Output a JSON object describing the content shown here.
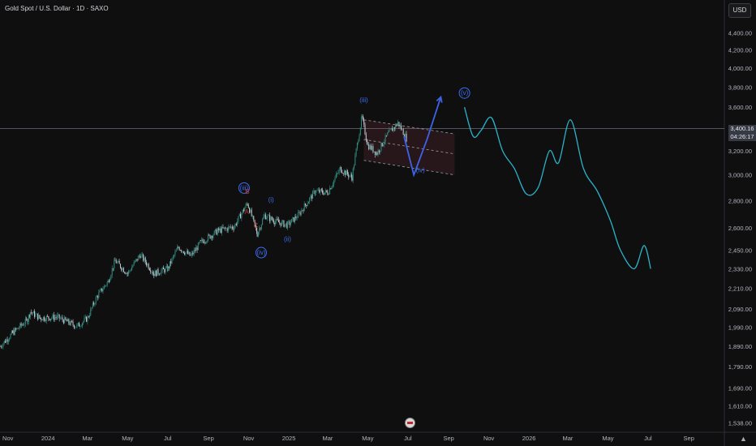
{
  "header": {
    "title": "Gold Spot / U.S. Dollar · 1D · SAXO"
  },
  "currency_button": {
    "label": "USD"
  },
  "last_price": {
    "value": "3,400.16",
    "countdown": "04:26:17"
  },
  "chart_data": {
    "type": "line",
    "title": "Gold Spot / U.S. Dollar · 1D · SAXO",
    "scale": "log",
    "ylim": [
      1500,
      4600
    ],
    "y_ticks": [
      4400,
      4200,
      4000,
      3800,
      3600,
      3400,
      3200,
      3000,
      2800,
      2600,
      2450,
      2330,
      2210,
      2090,
      1990,
      1890,
      1790,
      1690,
      1610,
      1538
    ],
    "y_tick_labels": [
      "4,400.00",
      "4,200.00",
      "4,000.00",
      "3,800.00",
      "3,600.00",
      "3,400.00",
      "3,200.00",
      "3,000.00",
      "2,800.00",
      "2,600.00",
      "2,450.00",
      "2,330.00",
      "2,210.00",
      "2,090.00",
      "1,990.00",
      "1,890.00",
      "1,790.00",
      "1,690.00",
      "1,610.00",
      "1,538.00"
    ],
    "x_tick_labels": [
      "Nov",
      "2024",
      "Mar",
      "May",
      "Jul",
      "Sep",
      "Nov",
      "2025",
      "Mar",
      "May",
      "Jul",
      "Sep",
      "Nov",
      "2026",
      "Mar",
      "May",
      "Jul",
      "Sep"
    ],
    "x_ticks": [
      "2023-11",
      "2024-01",
      "2024-03",
      "2024-05",
      "2024-07",
      "2024-09",
      "2024-11",
      "2025-01",
      "2025-03",
      "2025-05",
      "2025-07",
      "2025-09",
      "2025-11",
      "2026-01",
      "2026-03",
      "2026-05",
      "2026-07",
      "2026-09"
    ],
    "x_range": [
      "2023-10-20",
      "2026-10-25"
    ],
    "series": [
      {
        "kind": "candles",
        "points": [
          [
            "2023-10-20",
            1890
          ],
          [
            "2023-11-10",
            1965
          ],
          [
            "2023-12-01",
            2030
          ],
          [
            "2023-12-05",
            2075
          ],
          [
            "2023-12-20",
            2040
          ],
          [
            "2024-01-15",
            2045
          ],
          [
            "2024-02-14",
            1995
          ],
          [
            "2024-03-01",
            2040
          ],
          [
            "2024-03-15",
            2160
          ],
          [
            "2024-04-01",
            2250
          ],
          [
            "2024-04-12",
            2380
          ],
          [
            "2024-05-01",
            2300
          ],
          [
            "2024-05-20",
            2420
          ],
          [
            "2024-06-10",
            2300
          ],
          [
            "2024-07-01",
            2330
          ],
          [
            "2024-07-17",
            2470
          ],
          [
            "2024-08-05",
            2410
          ],
          [
            "2024-08-20",
            2500
          ],
          [
            "2024-09-15",
            2580
          ],
          [
            "2024-10-10",
            2610
          ],
          [
            "2024-10-30",
            2780
          ],
          [
            "2024-11-14",
            2560
          ],
          [
            "2024-11-25",
            2690
          ],
          [
            "2024-12-10",
            2650
          ],
          [
            "2024-12-30",
            2620
          ],
          [
            "2025-01-15",
            2690
          ],
          [
            "2025-02-10",
            2870
          ],
          [
            "2025-03-01",
            2860
          ],
          [
            "2025-03-20",
            3050
          ],
          [
            "2025-04-07",
            2980
          ],
          [
            "2025-04-22",
            3500
          ],
          [
            "2025-05-01",
            3250
          ],
          [
            "2025-05-15",
            3180
          ],
          [
            "2025-06-01",
            3350
          ],
          [
            "2025-06-16",
            3450
          ],
          [
            "2025-06-30",
            3300
          ]
        ]
      },
      {
        "kind": "projection",
        "points": [
          [
            "2025-09-25",
            3600
          ],
          [
            "2025-10-08",
            3330
          ],
          [
            "2025-10-20",
            3380
          ],
          [
            "2025-11-05",
            3500
          ],
          [
            "2025-11-22",
            3200
          ],
          [
            "2025-12-10",
            3050
          ],
          [
            "2025-12-28",
            2850
          ],
          [
            "2026-01-15",
            2900
          ],
          [
            "2026-02-01",
            3200
          ],
          [
            "2026-02-15",
            3100
          ],
          [
            "2026-03-05",
            3480
          ],
          [
            "2026-03-25",
            3050
          ],
          [
            "2026-04-15",
            2870
          ],
          [
            "2026-05-05",
            2650
          ],
          [
            "2026-05-20",
            2450
          ],
          [
            "2026-06-10",
            2330
          ],
          [
            "2026-06-25",
            2480
          ],
          [
            "2026-07-05",
            2330
          ]
        ]
      },
      {
        "kind": "wave-path",
        "points": [
          [
            "2025-06-25",
            3330
          ],
          [
            "2025-07-10",
            3000
          ],
          [
            "2025-07-30",
            3300
          ],
          [
            "2025-08-20",
            3700
          ]
        ]
      }
    ],
    "annotations": [
      {
        "text": "(iii)",
        "date": "2024-10-25",
        "price": 2880,
        "style": "circle"
      },
      {
        "text": "B",
        "date": "2024-10-30",
        "price": 2850,
        "style": "red"
      },
      {
        "text": "A",
        "date": "2024-10-29",
        "price": 2700,
        "style": "red"
      },
      {
        "text": "C",
        "date": "2024-11-12",
        "price": 2600,
        "style": "red"
      },
      {
        "text": "(i)",
        "date": "2024-12-05",
        "price": 2790,
        "style": "blue"
      },
      {
        "text": "(ii)",
        "date": "2024-12-30",
        "price": 2510,
        "style": "blue"
      },
      {
        "text": "(iv)",
        "date": "2024-11-20",
        "price": 2420,
        "style": "circle"
      },
      {
        "text": "(iii)",
        "date": "2025-04-25",
        "price": 3650,
        "style": "blue"
      },
      {
        "text": "(iv)",
        "date": "2025-07-20",
        "price": 3020,
        "style": "blue"
      },
      {
        "text": "(v)",
        "date": "2025-09-25",
        "price": 3720,
        "style": "circle"
      }
    ],
    "channel": {
      "upper": [
        [
          "2025-04-25",
          3480
        ],
        [
          "2025-09-10",
          3350
        ]
      ],
      "lower": [
        [
          "2025-04-25",
          3120
        ],
        [
          "2025-09-10",
          3000
        ]
      ]
    },
    "current_price": 3400.16,
    "grid": false
  }
}
